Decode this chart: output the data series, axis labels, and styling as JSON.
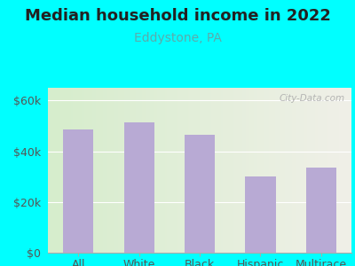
{
  "title": "Median household income in 2022",
  "subtitle": "Eddystone, PA",
  "categories": [
    "All",
    "White",
    "Black",
    "Hispanic",
    "Multirace"
  ],
  "values": [
    48500,
    51500,
    46500,
    30000,
    33500
  ],
  "bar_color": "#b8aad4",
  "title_color": "#222222",
  "subtitle_color": "#5aacac",
  "background_outer": "#00ffff",
  "background_inner_left": "#d6edcc",
  "background_inner_right": "#f0f0e8",
  "ylim": [
    0,
    65000
  ],
  "yticks": [
    0,
    20000,
    40000,
    60000
  ],
  "ytick_labels": [
    "$0",
    "$20k",
    "$40k",
    "$60k"
  ],
  "watermark": "City-Data.com",
  "title_fontsize": 13,
  "subtitle_fontsize": 10,
  "tick_fontsize": 9,
  "bar_width": 0.5,
  "grid_color": "#e0e8e0",
  "axis_color": "#aaaaaa"
}
